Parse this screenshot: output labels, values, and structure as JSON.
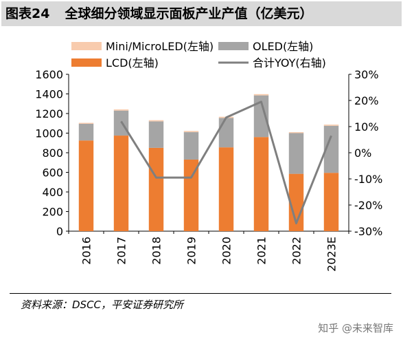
{
  "header": {
    "figure_no": "图表24",
    "title": "全球细分领域显示面板产业产值（亿美元）"
  },
  "chart_data": {
    "type": "bar",
    "categories": [
      "2016",
      "2017",
      "2018",
      "2019",
      "2020",
      "2021",
      "2022",
      "2023E"
    ],
    "series": [
      {
        "name": "LCD(左轴)",
        "kind": "bar",
        "axis": "left",
        "color": "#ed7d31",
        "values": [
          925,
          975,
          850,
          730,
          855,
          960,
          585,
          595
        ]
      },
      {
        "name": "OLED(左轴)",
        "kind": "bar",
        "axis": "left",
        "color": "#a5a5a5",
        "values": [
          170,
          255,
          270,
          280,
          300,
          425,
          415,
          480
        ]
      },
      {
        "name": "Mini/MicroLED(左轴)",
        "kind": "bar",
        "axis": "left",
        "color": "#f8cbad",
        "values": [
          10,
          12,
          12,
          12,
          12,
          13,
          10,
          12
        ]
      },
      {
        "name": "合计YOY(右轴)",
        "kind": "line",
        "axis": "right",
        "color": "#7f7f7f",
        "values": [
          null,
          12,
          -9.5,
          -9.5,
          13.5,
          19.5,
          -27,
          6.5
        ]
      }
    ],
    "left_axis": {
      "min": 0,
      "max": 1600,
      "ticks": [
        0,
        200,
        400,
        600,
        800,
        1000,
        1200,
        1400,
        1600
      ]
    },
    "right_axis": {
      "min": -30,
      "max": 30,
      "ticks": [
        -30,
        -20,
        -10,
        0,
        10,
        20,
        30
      ],
      "format": "percent"
    },
    "grid": false,
    "legend_position": "top"
  },
  "footer": {
    "source": "资料来源：DSCC，平安证券研究所",
    "watermark": "知乎 @未来智库"
  }
}
